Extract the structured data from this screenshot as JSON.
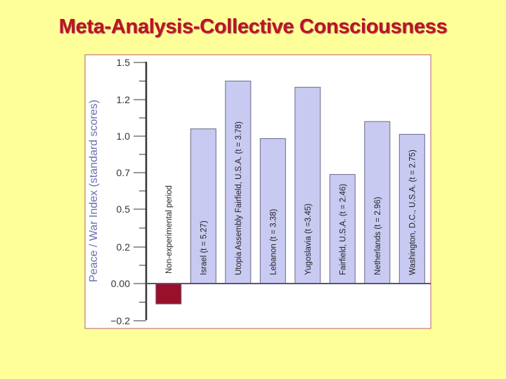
{
  "title": "Meta-Analysis-Collective Consciousness",
  "chart_data": {
    "type": "bar",
    "ylabel": "Peace / War Index (standard scores)",
    "ylim": [
      -0.2,
      1.5
    ],
    "yticks": [
      {
        "value": 1.5,
        "label": "1.5"
      },
      {
        "value": 1.2,
        "label": "1.2"
      },
      {
        "value": 1.0,
        "label": "1.0"
      },
      {
        "value": 0.7,
        "label": "0.7"
      },
      {
        "value": 0.5,
        "label": "0.5"
      },
      {
        "value": 0.2,
        "label": "0.2"
      },
      {
        "value": 0.0,
        "label": "0.00"
      },
      {
        "value": -0.2,
        "label": "−0.2"
      }
    ],
    "categories": [
      "Non-experimental period",
      "Israel  (t = 5.27)",
      "Utopia Assembly Fairfield, U.S.A.  (t = 3.78)",
      "Lebanon  (t = 3.38)",
      "Yugoslavia  (t =3.45)",
      "Fairfield,  U.S.A.  (t = 2.46)",
      "Netherlands  (t = 2.96)",
      "Washington, D.C.,  U.S.A.  (t = 2.75)"
    ],
    "values": [
      -0.11,
      1.04,
      1.35,
      0.98,
      1.3,
      0.69,
      1.08,
      1.01
    ],
    "colors": {
      "negative": "#99102A",
      "positive": "#C8CAF2",
      "bar_edge": "#6A6A8A",
      "plot_bg": "#FFFFFF",
      "frame": "#C87878",
      "axis_title": "#6A6FB0",
      "title": "#C0102A",
      "background": "#FFFF99"
    },
    "grid": false
  }
}
